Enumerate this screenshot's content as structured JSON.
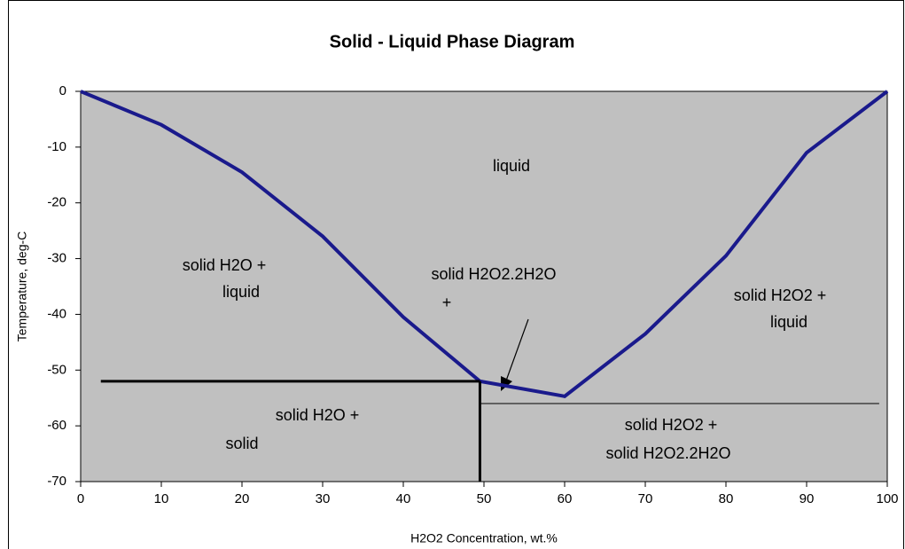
{
  "chart_data": {
    "type": "line",
    "title": "Solid - Liquid Phase Diagram",
    "xlabel": "H2O2 Concentration, wt.%",
    "ylabel": "Temperature, deg-C",
    "xlim": [
      0,
      100
    ],
    "ylim": [
      -70,
      0
    ],
    "xticks": [
      0,
      10,
      20,
      30,
      40,
      50,
      60,
      70,
      80,
      90,
      100
    ],
    "yticks": [
      0,
      -10,
      -20,
      -30,
      -40,
      -50,
      -60,
      -70
    ],
    "series": [
      {
        "color": "#1a1a8c",
        "linewidth": 4,
        "x": [
          0,
          10,
          20,
          30,
          40,
          49.5,
          60,
          70,
          80,
          90,
          100
        ],
        "values": [
          0,
          -6,
          -14.5,
          -26,
          -40.5,
          -52,
          -54.7,
          -43.5,
          -29.5,
          -11,
          0
        ]
      },
      {
        "color": "#000000",
        "linewidth": 3,
        "x": [
          2.5,
          49.5
        ],
        "values": [
          -52,
          -52
        ]
      },
      {
        "color": "#000000",
        "linewidth": 3,
        "x": [
          49.5,
          49.5
        ],
        "values": [
          -52,
          -70
        ]
      },
      {
        "color": "#000000",
        "linewidth": 1,
        "x": [
          49.5,
          99
        ],
        "values": [
          -56,
          -56
        ]
      }
    ],
    "annotations": [
      "liquid",
      "solid H2O +",
      "liquid",
      "solid H2O2.2H2O",
      "+",
      "solid H2O2 +",
      "liquid",
      "solid H2O +",
      "solid",
      "solid H2O2 +",
      "solid H2O2.2H2O"
    ]
  }
}
